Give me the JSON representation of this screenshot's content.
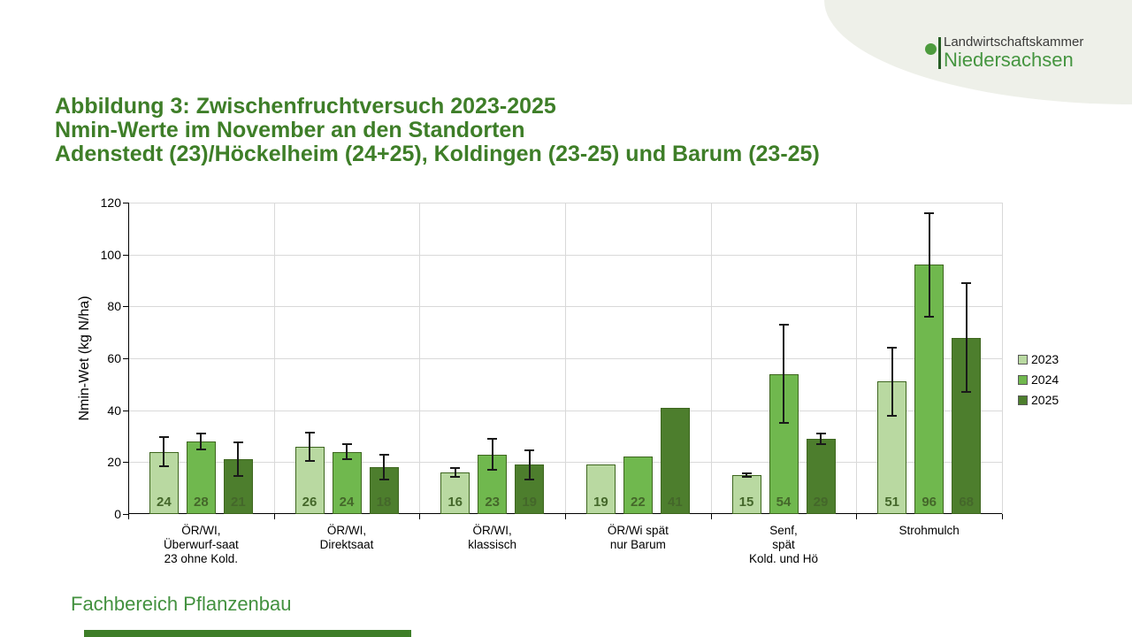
{
  "logo": {
    "line1": "Landwirtschaftskammer",
    "line2": "Niedersachsen",
    "dot_color": "#4c9b3d",
    "text_color": "#3b3b3a",
    "accent_color": "#459540"
  },
  "title": {
    "lines": [
      "Abbildung 3: Zwischenfruchtversuch 2023-2025",
      "Nmin-Werte im November an den Standorten",
      "Adenstedt (23)/Höckelheim (24+25), Koldingen (23-25) und Barum (23-25)"
    ],
    "color": "#3e7e28"
  },
  "footer": {
    "text": "Fachbereich Pflanzenbau",
    "color": "#43913f",
    "accent_bar_color": "#3e7e28"
  },
  "chart_data": {
    "type": "bar",
    "ylabel": "Nmin-Wet (kg N/ha)",
    "ylim": [
      0,
      120
    ],
    "ytick_step": 20,
    "grid": true,
    "legend_position": "right",
    "categories": [
      "ÖR/WI,\nÜberwurf-saat\n23 ohne Kold.",
      "ÖR/WI,\nDirektsaat",
      "ÖR/WI,\nklassisch",
      "ÖR/Wi spät\nnur Barum",
      "Senf,\nspät\nKold. und Hö",
      "Strohmulch"
    ],
    "series": [
      {
        "name": "2023",
        "color": "#b9d9a1",
        "values": [
          24,
          26,
          16,
          19,
          15,
          51
        ],
        "errors": [
          5.5,
          5.5,
          1.7,
          0,
          0.7,
          13
        ]
      },
      {
        "name": "2024",
        "color": "#70b84e",
        "values": [
          28,
          24,
          23,
          22,
          54,
          96
        ],
        "errors": [
          3,
          3,
          6,
          0,
          19,
          20
        ]
      },
      {
        "name": "2025",
        "color": "#4d7e2d",
        "values": [
          21,
          18,
          19,
          41,
          29,
          68
        ],
        "errors": [
          6.5,
          4.7,
          5.7,
          0,
          2,
          21
        ]
      }
    ],
    "bar_border_color": "#3e661f",
    "value_label_color": "#44672a",
    "error_bar_color": "#1a1a1a",
    "gridline_color": "#d9d9d9",
    "axis_color": "#000000"
  }
}
